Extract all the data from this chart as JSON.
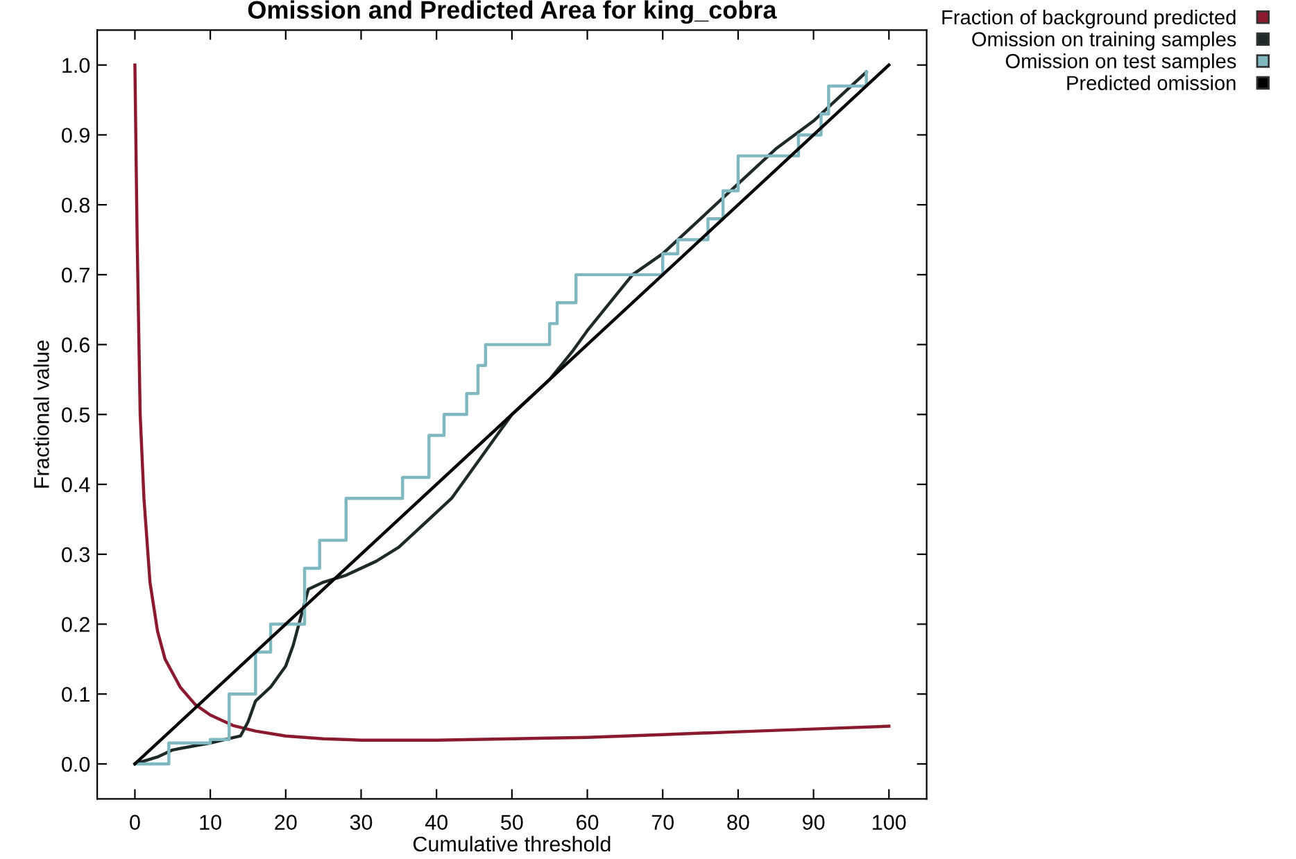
{
  "chart_data": {
    "type": "line",
    "title": "Omission and Predicted Area for king_cobra",
    "xlabel": "Cumulative threshold",
    "ylabel": "Fractional value",
    "xlim": [
      -5,
      105
    ],
    "ylim": [
      -0.05,
      1.05
    ],
    "xticks": [
      0,
      10,
      20,
      30,
      40,
      50,
      60,
      70,
      80,
      90,
      100
    ],
    "yticks": [
      {
        "value": 0,
        "label": "0.0"
      },
      0.1,
      0.2,
      0.3,
      0.4,
      0.5,
      0.6,
      0.7,
      0.8,
      0.9,
      {
        "value": 1,
        "label": "1.0"
      }
    ],
    "grid": false,
    "legend": "top right",
    "marker": "none",
    "line_style": "solid",
    "series": [
      {
        "name": "Fraction of background predicted",
        "color": "#8b1a2e",
        "x": [
          0,
          0.3,
          0.7,
          1.2,
          2,
          3,
          4,
          6,
          8,
          10,
          13,
          16,
          20,
          25,
          30,
          40,
          50,
          60,
          70,
          80,
          90,
          100
        ],
        "values": [
          1.0,
          0.75,
          0.5,
          0.38,
          0.26,
          0.19,
          0.15,
          0.11,
          0.085,
          0.07,
          0.055,
          0.047,
          0.04,
          0.036,
          0.034,
          0.034,
          0.036,
          0.038,
          0.042,
          0.046,
          0.05,
          0.054
        ]
      },
      {
        "name": "Omission on training samples",
        "color": "#1e2a2a",
        "x": [
          0,
          3,
          5,
          10,
          14,
          15,
          16,
          18,
          20,
          21,
          22,
          23,
          25,
          28,
          32,
          35,
          38,
          40,
          42,
          44,
          46,
          48,
          50,
          53,
          55,
          58,
          60,
          63,
          66,
          70,
          75,
          80,
          85,
          90,
          95,
          97
        ],
        "values": [
          0,
          0.01,
          0.02,
          0.03,
          0.04,
          0.06,
          0.09,
          0.11,
          0.14,
          0.17,
          0.21,
          0.25,
          0.26,
          0.27,
          0.29,
          0.31,
          0.34,
          0.36,
          0.38,
          0.41,
          0.44,
          0.47,
          0.5,
          0.53,
          0.55,
          0.59,
          0.62,
          0.66,
          0.7,
          0.73,
          0.78,
          0.83,
          0.88,
          0.92,
          0.97,
          0.99
        ]
      },
      {
        "name": "Omission on test samples",
        "color": "#7fb8c0",
        "type": "step",
        "x": [
          0,
          4.5,
          10,
          12.5,
          16,
          18,
          22.5,
          24.5,
          28,
          35.5,
          39,
          41,
          44,
          45.5,
          46.5,
          55,
          56,
          58.5,
          70,
          72,
          76,
          78,
          80,
          88,
          91,
          92,
          97
        ],
        "values": [
          0,
          0.03,
          0.035,
          0.1,
          0.16,
          0.2,
          0.28,
          0.32,
          0.38,
          0.41,
          0.47,
          0.5,
          0.53,
          0.57,
          0.6,
          0.63,
          0.66,
          0.7,
          0.73,
          0.75,
          0.78,
          0.82,
          0.87,
          0.9,
          0.93,
          0.97,
          0.99
        ]
      },
      {
        "name": "Predicted omission",
        "color": "#000000",
        "x": [
          0,
          100
        ],
        "values": [
          0,
          1
        ]
      }
    ]
  }
}
